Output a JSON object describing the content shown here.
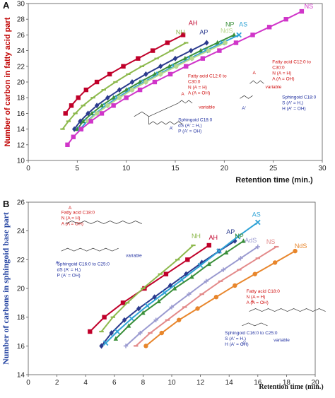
{
  "chart_data": [
    {
      "panel": "A",
      "type": "line",
      "xlabel": "Retention time (min.)",
      "ylabel": "Number of carbon in fatty acid part",
      "xlim": [
        0,
        30
      ],
      "ylim": [
        10,
        30
      ],
      "xticks": [
        0,
        5,
        10,
        15,
        20,
        25,
        30
      ],
      "yticks": [
        10,
        12,
        14,
        16,
        18,
        20,
        22,
        24,
        26,
        28,
        30
      ],
      "series": [
        {
          "name": "AH",
          "color": "#c0002a",
          "marker": "square",
          "x": [
            3.8,
            4.4,
            5.1,
            5.9,
            7.0,
            8.3,
            9.7,
            11.2,
            12.7,
            14.2,
            15.8
          ],
          "y": [
            16,
            17,
            18,
            19,
            20,
            21,
            22,
            23,
            24,
            25,
            26
          ]
        },
        {
          "name": "NH",
          "color": "#8db94d",
          "marker": "dash",
          "x": [
            3.5,
            4.1,
            4.8,
            5.6,
            6.6,
            7.7,
            8.9,
            10.2,
            11.6,
            13.1,
            14.6,
            16.1
          ],
          "y": [
            14,
            15,
            16,
            17,
            18,
            19,
            20,
            21,
            22,
            23,
            24,
            25
          ]
        },
        {
          "name": "AP",
          "color": "#2b3b8e",
          "marker": "diamond",
          "x": [
            4.7,
            5.3,
            6.1,
            7.0,
            8.1,
            9.3,
            10.6,
            12.0,
            13.5,
            15.0,
            16.6,
            18.2
          ],
          "y": [
            14,
            15,
            16,
            17,
            18,
            19,
            20,
            21,
            22,
            23,
            24,
            25
          ]
        },
        {
          "name": "NP",
          "color": "#3a8f3a",
          "marker": "triangle",
          "x": [
            5.0,
            5.6,
            6.5,
            7.5,
            8.7,
            10.0,
            11.4,
            12.9,
            14.4,
            16.0,
            17.6,
            19.3,
            21.0
          ],
          "y": [
            14,
            15,
            16,
            17,
            18,
            19,
            20,
            21,
            22,
            23,
            24,
            25,
            26
          ]
        },
        {
          "name": "AS",
          "color": "#2fa3d6",
          "marker": "x",
          "x": [
            5.3,
            6.0,
            6.9,
            7.9,
            9.1,
            10.4,
            11.8,
            13.3,
            14.9,
            16.5,
            18.1,
            19.8,
            21.5
          ],
          "y": [
            14,
            15,
            16,
            17,
            18,
            19,
            20,
            21,
            22,
            23,
            24,
            25,
            26
          ]
        },
        {
          "name": "NdS",
          "color": "#b8d98f",
          "marker": "circle",
          "x": [
            6.1,
            7.0,
            8.1,
            9.3,
            10.6,
            12.0,
            13.5,
            15.1,
            16.7,
            18.4,
            20.1
          ],
          "y": [
            15,
            16,
            17,
            18,
            19,
            20,
            21,
            22,
            23,
            24,
            25
          ]
        },
        {
          "name": "NS",
          "color": "#d035c9",
          "marker": "square",
          "x": [
            4.0,
            4.6,
            5.4,
            6.4,
            7.5,
            8.7,
            10.0,
            11.4,
            12.9,
            14.5,
            16.1,
            17.8,
            19.5,
            21.2,
            22.9,
            24.6,
            26.3,
            27.9
          ],
          "y": [
            12,
            13,
            14,
            15,
            16,
            17,
            18,
            19,
            20,
            21,
            22,
            23,
            24,
            25,
            26,
            27,
            28,
            29
          ]
        }
      ],
      "annotations": {
        "fatty_acid": [
          "Fatty acid C12:0 to",
          "C30:0",
          "N (A = H)",
          "A (A = OH)"
        ],
        "fatty_acid_right": [
          "Fatty acid C12:0 to",
          "C30:0",
          "N (A = H)",
          "A (A = OH)"
        ],
        "sphingoid_left": [
          "Sphingoid C18:0",
          "dS (A' = H,)",
          "P (A' = OH)"
        ],
        "sphingoid_right": [
          "Sphingoid C18:0",
          "S (A' = H,)",
          "H (A' = OH)"
        ],
        "variable": "variable",
        "atom_a": "A",
        "atom_a_prime": "A'"
      }
    },
    {
      "panel": "B",
      "type": "line",
      "xlabel": "Retention time (min.)",
      "ylabel": "Number of carbons in sphingoid base part",
      "xlim": [
        0,
        20
      ],
      "ylim": [
        14,
        26
      ],
      "xticks": [
        0,
        2,
        4,
        6,
        8,
        10,
        12,
        14,
        16,
        18,
        20
      ],
      "yticks": [
        14,
        16,
        18,
        20,
        22,
        24,
        26
      ],
      "series": [
        {
          "name": "AH",
          "color": "#c0002a",
          "marker": "square",
          "x": [
            4.3,
            5.3,
            6.6,
            8.1,
            9.6,
            11.1,
            12.6
          ],
          "y": [
            17,
            18,
            19,
            20,
            21,
            22,
            23
          ]
        },
        {
          "name": "NH",
          "color": "#8db94d",
          "marker": "dash",
          "x": [
            5.1,
            5.9,
            6.9,
            8.0,
            9.2,
            10.4,
            11.5
          ],
          "y": [
            17,
            18,
            19,
            20,
            21,
            22,
            23
          ]
        },
        {
          "name": "AP",
          "color": "#2b3b8e",
          "marker": "diamond",
          "x": [
            5.1,
            5.8,
            6.7,
            7.7,
            8.8,
            9.9,
            11.0,
            12.1,
            13.3,
            14.4
          ],
          "y": [
            16,
            16.9,
            17.8,
            18.6,
            19.4,
            20.2,
            21.0,
            21.8,
            22.6,
            23.3
          ]
        },
        {
          "name": "AS",
          "color": "#2fa3d6",
          "marker": "x",
          "x": [
            5.4,
            6.2,
            7.2,
            8.3,
            9.5,
            10.7,
            12.0,
            13.3,
            14.6,
            16.0
          ],
          "y": [
            16.2,
            17.0,
            17.9,
            18.8,
            19.7,
            20.6,
            21.6,
            22.6,
            23.6,
            24.6
          ]
        },
        {
          "name": "NP",
          "color": "#3a8f3a",
          "marker": "triangle",
          "x": [
            6.1,
            7.0,
            8.0,
            9.1,
            10.2,
            11.4,
            12.6,
            13.8,
            15.0
          ],
          "y": [
            16.5,
            17.4,
            18.3,
            19.1,
            20.0,
            20.8,
            21.7,
            22.5,
            23.3
          ]
        },
        {
          "name": "AdS",
          "color": "#9a9ad0",
          "marker": "plus",
          "x": [
            6.8,
            7.8,
            8.9,
            10.0,
            11.2,
            12.4,
            13.6,
            14.8,
            16.0
          ],
          "y": [
            16.0,
            16.9,
            17.8,
            18.7,
            19.6,
            20.5,
            21.3,
            22.1,
            22.9
          ]
        },
        {
          "name": "NS",
          "color": "#e38a8a",
          "marker": "dash",
          "x": [
            7.5,
            8.5,
            9.7,
            10.9,
            12.1,
            13.4,
            14.7,
            16.0,
            17.3
          ],
          "y": [
            16.0,
            16.9,
            17.8,
            18.7,
            19.6,
            20.5,
            21.3,
            22.1,
            22.9
          ]
        },
        {
          "name": "NdS",
          "color": "#e8862c",
          "marker": "circle",
          "x": [
            8.2,
            9.3,
            10.5,
            11.8,
            13.1,
            14.4,
            15.8,
            17.2,
            18.6
          ],
          "y": [
            16.0,
            16.9,
            17.8,
            18.6,
            19.4,
            20.2,
            21.0,
            21.8,
            22.6
          ]
        }
      ],
      "annotations": {
        "fatty_acid_left": [
          "Fatty acid C18:0",
          "N (A = H)",
          "A (A = OH)"
        ],
        "sphingoid_left": [
          "Sphingoid C16:0 to C25:0",
          "dS (A' = H,)",
          "P (A' = OH)"
        ],
        "fatty_acid_right": [
          "Fatty acid C18:0",
          "N (A = H)",
          "A (A = OH)"
        ],
        "sphingoid_right": [
          "Sphingoid C16:0 to C25:0",
          "S (A' = H,)",
          "H (A' = OH)"
        ],
        "variable": "variable",
        "atom_a": "A",
        "atom_a_prime": "A'"
      }
    }
  ]
}
